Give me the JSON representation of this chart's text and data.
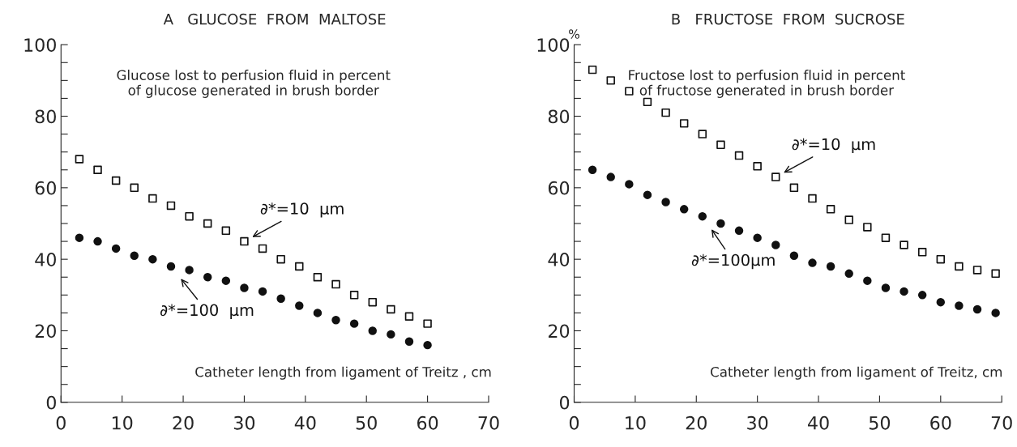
{
  "chart_data": [
    {
      "type": "scatter",
      "title": "A   GLUCOSE  FROM  MALTOSE",
      "xlabel": "Catheter length from ligament of Treitz , cm",
      "x": [
        3,
        6,
        9,
        12,
        15,
        18,
        21,
        24,
        27,
        30,
        33,
        36,
        39,
        42,
        45,
        48,
        51,
        54,
        57,
        60
      ],
      "series": [
        {
          "name": "∂*=10  μm",
          "color": "#111111",
          "marker": "square",
          "values": [
            68,
            65,
            62,
            60,
            57,
            55,
            52,
            50,
            48,
            45,
            43,
            40,
            38,
            35,
            33,
            30,
            28,
            26,
            24,
            22
          ]
        },
        {
          "name": "∂*=100  μm",
          "color": "#111111",
          "marker": "circle",
          "values": [
            46,
            45,
            43,
            41,
            40,
            38,
            37,
            35,
            34,
            32,
            31,
            29,
            27,
            25,
            23,
            22,
            20,
            19,
            17,
            16
          ]
        }
      ],
      "annotations": [
        "Glucose lost to perfusion fluid in percent\nof glucose generated in brush border"
      ],
      "xlim": [
        0,
        70
      ],
      "xticks": [
        0,
        10,
        20,
        30,
        40,
        50,
        60,
        70
      ],
      "ylim": [
        0,
        100
      ],
      "yticks": [
        0,
        {
          "value": 5,
          "label": null
        },
        {
          "value": 10,
          "label": null
        },
        {
          "value": 15,
          "label": null
        },
        20,
        {
          "value": 25,
          "label": null
        },
        {
          "value": 30,
          "label": null
        },
        {
          "value": 35,
          "label": null
        },
        40,
        {
          "value": 45,
          "label": null
        },
        {
          "value": 50,
          "label": null
        },
        {
          "value": 55,
          "label": null
        },
        60,
        {
          "value": 65,
          "label": null
        },
        {
          "value": 70,
          "label": null
        },
        {
          "value": 75,
          "label": null
        },
        80,
        {
          "value": 85,
          "label": null
        },
        {
          "value": 90,
          "label": null
        },
        {
          "value": 95,
          "label": null
        },
        100
      ],
      "grid": false
    },
    {
      "type": "scatter",
      "title": "B   FRUCTOSE  FROM  SUCROSE",
      "xlabel": "Catheter length from ligament of Treitz, cm",
      "ylabel": "%",
      "x": [
        3,
        6,
        9,
        12,
        15,
        18,
        21,
        24,
        27,
        30,
        33,
        36,
        39,
        42,
        45,
        48,
        51,
        54,
        57,
        60,
        63,
        66,
        69
      ],
      "series": [
        {
          "name": "∂*=10  μm",
          "color": "#111111",
          "marker": "square",
          "values": [
            93,
            90,
            87,
            84,
            81,
            78,
            75,
            72,
            69,
            66,
            63,
            60,
            57,
            54,
            51,
            49,
            46,
            44,
            42,
            40,
            38,
            37,
            36
          ]
        },
        {
          "name": "∂*=100μm",
          "color": "#111111",
          "marker": "circle",
          "values": [
            65,
            63,
            61,
            58,
            56,
            54,
            52,
            50,
            48,
            46,
            44,
            41,
            39,
            38,
            36,
            34,
            32,
            31,
            30,
            28,
            27,
            26,
            25
          ]
        }
      ],
      "annotations": [
        "Fructose lost to perfusion fluid in percent\nof fructose generated in brush border"
      ],
      "xlim": [
        0,
        70
      ],
      "xticks": [
        0,
        10,
        20,
        30,
        40,
        50,
        60,
        70
      ],
      "ylim": [
        0,
        100
      ],
      "yticks": [
        0,
        {
          "value": 5,
          "label": null
        },
        {
          "value": 10,
          "label": null
        },
        {
          "value": 15,
          "label": null
        },
        20,
        {
          "value": 25,
          "label": null
        },
        {
          "value": 30,
          "label": null
        },
        {
          "value": 35,
          "label": null
        },
        40,
        {
          "value": 45,
          "label": null
        },
        {
          "value": 50,
          "label": null
        },
        {
          "value": 55,
          "label": null
        },
        60,
        {
          "value": 65,
          "label": null
        },
        {
          "value": 70,
          "label": null
        },
        {
          "value": 75,
          "label": null
        },
        80,
        {
          "value": 85,
          "label": null
        },
        {
          "value": 90,
          "label": null
        },
        {
          "value": 95,
          "label": null
        },
        100
      ],
      "grid": false
    }
  ]
}
